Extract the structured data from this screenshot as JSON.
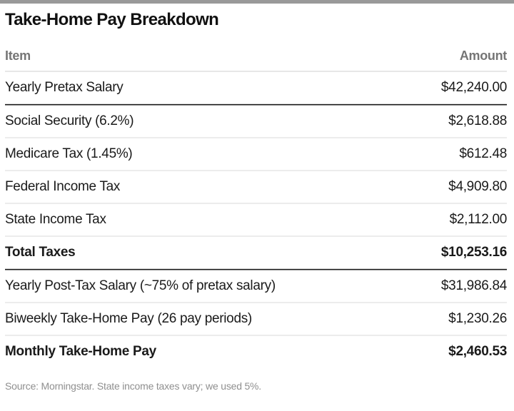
{
  "page": {
    "title": "Take-Home Pay Breakdown",
    "source_note": "Source: Morningstar. State income taxes vary; we used 5%."
  },
  "table": {
    "columns": {
      "item": "Item",
      "amount": "Amount"
    },
    "rows": [
      {
        "item": "Yearly Pretax Salary",
        "amount": "$42,240.00",
        "amount_value": 42240.0,
        "emphasis": "normal",
        "divider_below": "dark"
      },
      {
        "item": "Social Security (6.2%)",
        "amount": "$2,618.88",
        "amount_value": 2618.88,
        "emphasis": "normal",
        "divider_below": "light"
      },
      {
        "item": "Medicare Tax (1.45%)",
        "amount": "$612.48",
        "amount_value": 612.48,
        "emphasis": "normal",
        "divider_below": "light"
      },
      {
        "item": "Federal Income Tax",
        "amount": "$4,909.80",
        "amount_value": 4909.8,
        "emphasis": "normal",
        "divider_below": "light"
      },
      {
        "item": "State Income Tax",
        "amount": "$2,112.00",
        "amount_value": 2112.0,
        "emphasis": "normal",
        "divider_below": "light"
      },
      {
        "item": "Total Taxes",
        "amount": "$10,253.16",
        "amount_value": 10253.16,
        "emphasis": "bold",
        "divider_below": "dark"
      },
      {
        "item": "Yearly Post-Tax Salary (~75% of pretax salary)",
        "amount": "$31,986.84",
        "amount_value": 31986.84,
        "emphasis": "normal",
        "divider_below": "light"
      },
      {
        "item": "Biweekly Take-Home Pay (26 pay periods)",
        "amount": "$1,230.26",
        "amount_value": 1230.26,
        "emphasis": "normal",
        "divider_below": "light"
      },
      {
        "item": "Monthly Take-Home Pay",
        "amount": "$2,460.53",
        "amount_value": 2460.53,
        "emphasis": "bold",
        "divider_below": "none"
      }
    ]
  },
  "colors": {
    "accent_bar": "#999999",
    "header_text": "#757575",
    "body_text": "#1a1a1a",
    "divider_dark": "#1a1a1a",
    "divider_light": "#ececec",
    "source_text": "#8f8f8f"
  },
  "chart_data": {
    "type": "table",
    "title": "Take-Home Pay Breakdown",
    "columns": [
      "Item",
      "Amount"
    ],
    "rows": [
      [
        "Yearly Pretax Salary",
        "$42,240.00"
      ],
      [
        "Social Security (6.2%)",
        "$2,618.88"
      ],
      [
        "Medicare Tax (1.45%)",
        "$612.48"
      ],
      [
        "Federal Income Tax",
        "$4,909.80"
      ],
      [
        "State Income Tax",
        "$2,112.00"
      ],
      [
        "Total Taxes",
        "$10,253.16"
      ],
      [
        "Yearly Post-Tax Salary (~75% of pretax salary)",
        "$31,986.84"
      ],
      [
        "Biweekly Take-Home Pay (26 pay periods)",
        "$1,230.26"
      ],
      [
        "Monthly Take-Home Pay",
        "$2,460.53"
      ]
    ],
    "source": "Source: Morningstar. State income taxes vary; we used 5%."
  }
}
